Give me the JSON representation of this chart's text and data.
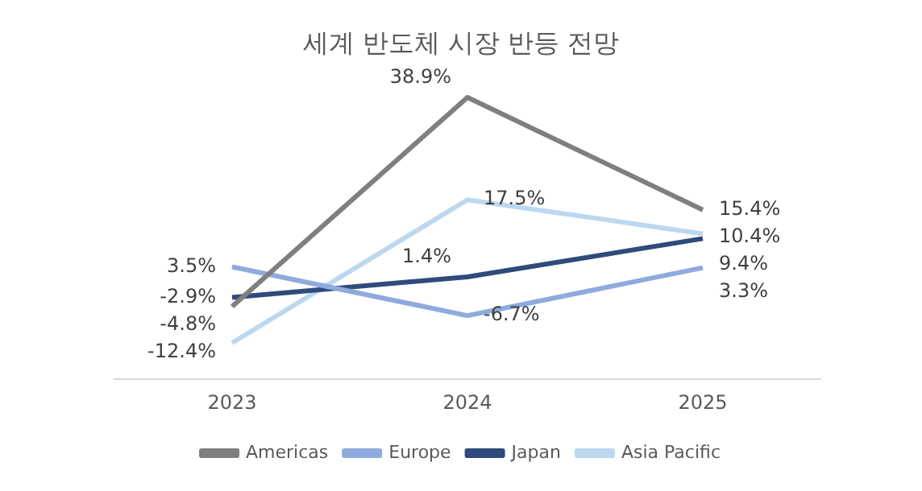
{
  "chart_data": {
    "type": "line",
    "title": "세계 반도체 시장 반등 전망",
    "categories": [
      "2023",
      "2024",
      "2025"
    ],
    "relative": false,
    "grid": false,
    "legend": "bottom",
    "marker": "none",
    "line_style": "solid",
    "series": [
      {
        "name": "Americas",
        "color": "#7f7f7f",
        "values": [
          -4.8,
          38.9,
          15.4
        ],
        "value_labels": [
          "-4.8%",
          "38.9%",
          "15.4%"
        ]
      },
      {
        "name": "Europe",
        "color": "#8faadc",
        "values": [
          3.5,
          -6.7,
          3.3
        ],
        "value_labels": [
          "3.5%",
          "-6.7%",
          "3.3%"
        ]
      },
      {
        "name": "Japan",
        "color": "#2f4b7c",
        "values": [
          -2.9,
          1.4,
          9.4
        ],
        "value_labels": [
          "-2.9%",
          "1.4%",
          "9.4%"
        ]
      },
      {
        "name": "Asia Pacific",
        "color": "#bdd7ee",
        "values": [
          -12.4,
          17.5,
          10.4
        ],
        "value_labels": [
          "-12.4%",
          "17.5%",
          "10.4%"
        ]
      }
    ]
  }
}
